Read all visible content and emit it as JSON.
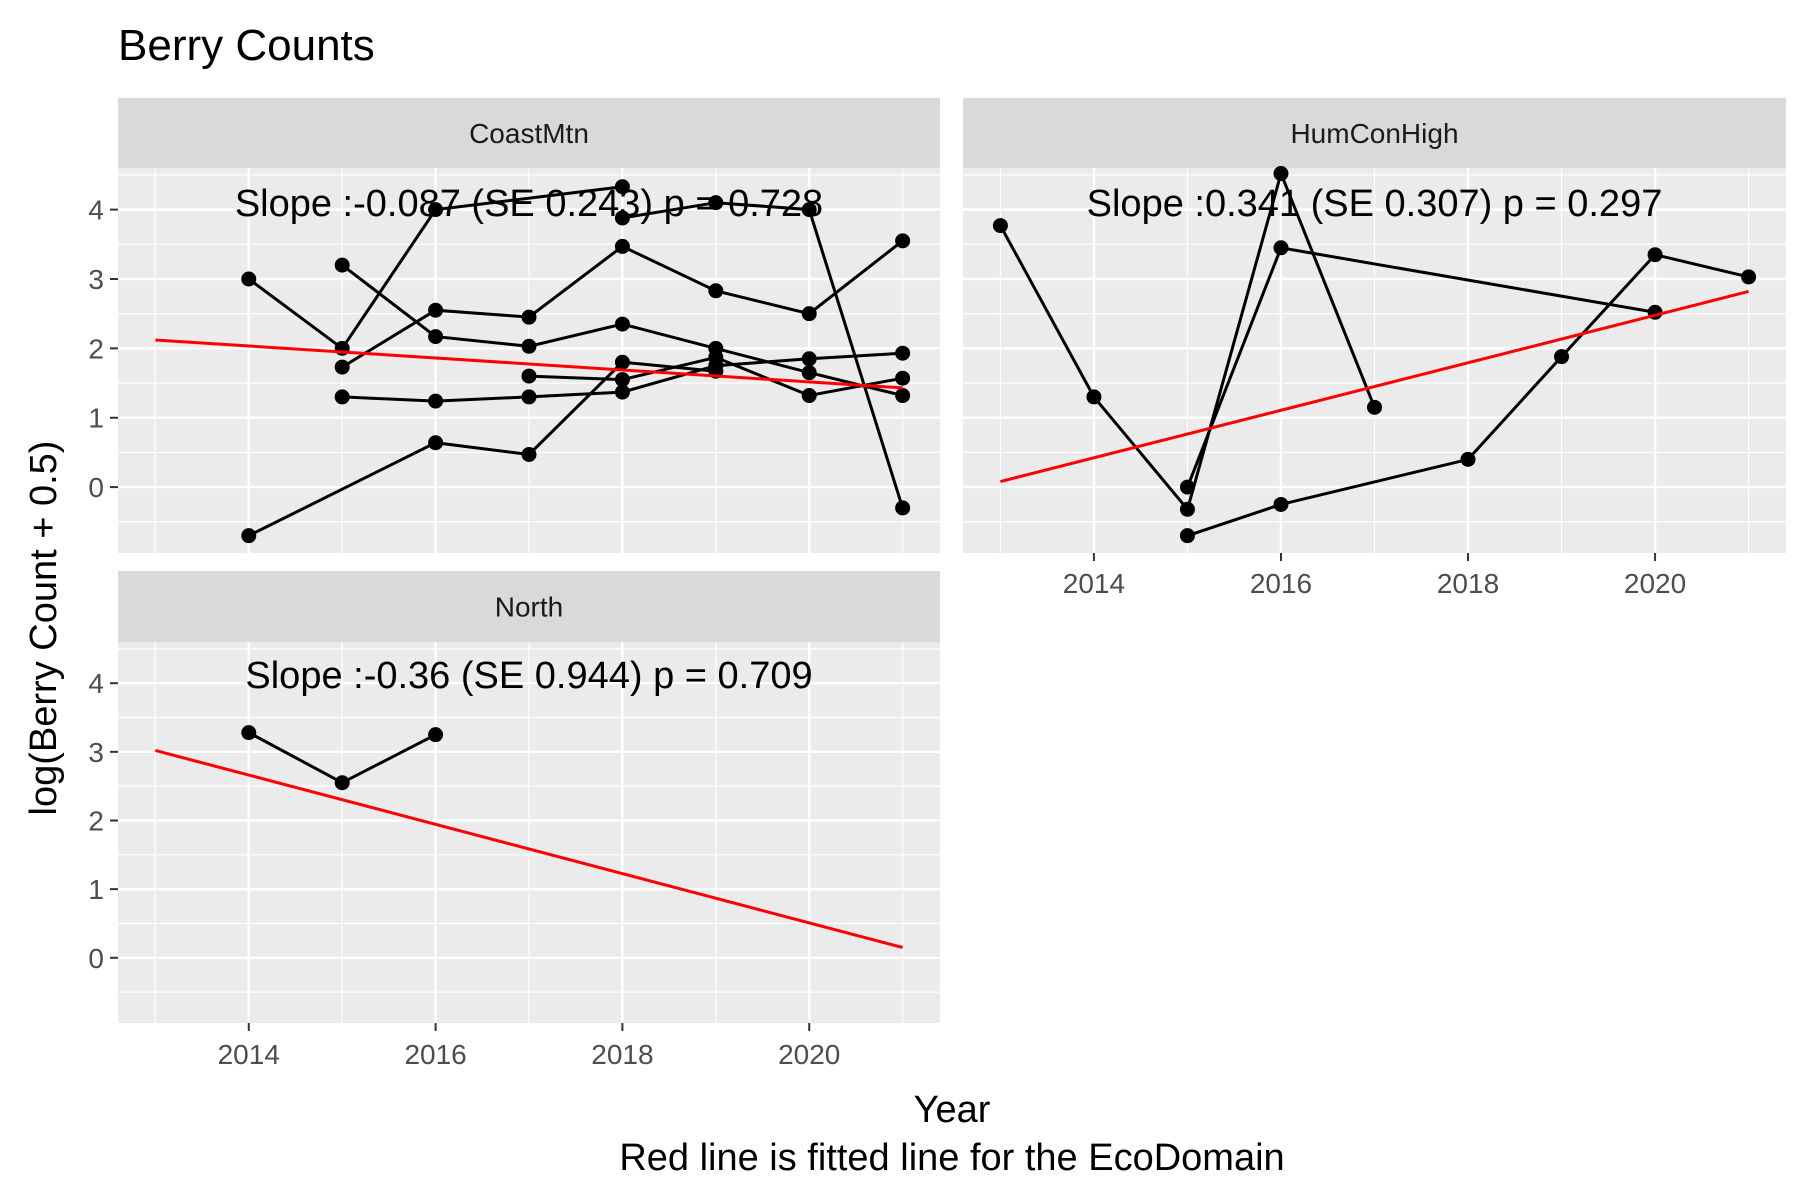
{
  "chart_data": {
    "type": "line",
    "title": "Berry Counts",
    "xlabel": "Year",
    "caption": "Red line is fitted line for the EcoDomain",
    "ylabel": "log(Berry Count + 0.5)",
    "xlim": [
      2012.6,
      2021.4
    ],
    "ylim": [
      -0.95,
      4.6
    ],
    "x_ticks": [
      2014,
      2016,
      2018,
      2020
    ],
    "y_ticks": [
      0,
      1,
      2,
      3,
      4
    ],
    "grid": true,
    "colors": {
      "panel_bg": "#ebebeb",
      "strip_bg": "#d9d9d9",
      "grid": "#ffffff",
      "series": "#000000",
      "fit": "#ff0000"
    },
    "panels": [
      {
        "name": "CoastMtn",
        "annotation": "Slope :-0.087 (SE 0.243) p = 0.728",
        "fit": {
          "x": [
            2013,
            2021
          ],
          "y": [
            2.12,
            1.43
          ]
        },
        "series": [
          {
            "x": [
              2014,
              2015,
              2016,
              2018
            ],
            "y": [
              3.0,
              2.0,
              4.0,
              4.33
            ]
          },
          {
            "x": [
              2015,
              2016,
              2017,
              2018,
              2019,
              2020,
              2021
            ],
            "y": [
              3.2,
              2.17,
              2.03,
              2.35,
              2.0,
              1.65,
              1.32
            ]
          },
          {
            "x": [
              2015,
              2016,
              2017,
              2018,
              2019,
              2020,
              2021
            ],
            "y": [
              1.73,
              2.55,
              2.45,
              3.47,
              2.83,
              2.5,
              3.55
            ]
          },
          {
            "x": [
              2015,
              2016,
              2017,
              2018,
              2019,
              2020,
              2021
            ],
            "y": [
              1.3,
              1.24,
              1.3,
              1.37,
              1.75,
              1.85,
              1.93
            ]
          },
          {
            "x": [
              2017,
              2018,
              2019,
              2020,
              2021
            ],
            "y": [
              1.6,
              1.55,
              1.87,
              1.32,
              1.57
            ]
          },
          {
            "x": [
              2014,
              2016,
              2017,
              2018,
              2019
            ],
            "y": [
              -0.7,
              0.64,
              0.47,
              1.8,
              1.67
            ]
          },
          {
            "x": [
              2018,
              2019,
              2020,
              2021
            ],
            "y": [
              3.88,
              4.1,
              4.0,
              -0.3
            ]
          }
        ]
      },
      {
        "name": "HumConHigh",
        "annotation": "Slope :0.341 (SE 0.307) p = 0.297",
        "fit": {
          "x": [
            2013,
            2021
          ],
          "y": [
            0.08,
            2.82
          ]
        },
        "series": [
          {
            "x": [
              2013,
              2014,
              2015,
              2016,
              2017
            ],
            "y": [
              3.77,
              1.3,
              -0.32,
              4.52,
              1.15
            ]
          },
          {
            "x": [
              2015,
              2016,
              2018,
              2019,
              2020,
              2021
            ],
            "y": [
              -0.7,
              -0.25,
              0.4,
              1.88,
              3.35,
              3.03
            ]
          },
          {
            "x": [
              2015,
              2016,
              2020
            ],
            "y": [
              0.0,
              3.45,
              2.52
            ]
          }
        ]
      },
      {
        "name": "North",
        "annotation": "Slope :-0.36 (SE 0.944) p = 0.709",
        "fit": {
          "x": [
            2013,
            2021
          ],
          "y": [
            3.02,
            0.15
          ]
        },
        "series": [
          {
            "x": [
              2014,
              2015,
              2016
            ],
            "y": [
              3.28,
              2.55,
              3.25
            ]
          }
        ]
      }
    ]
  }
}
